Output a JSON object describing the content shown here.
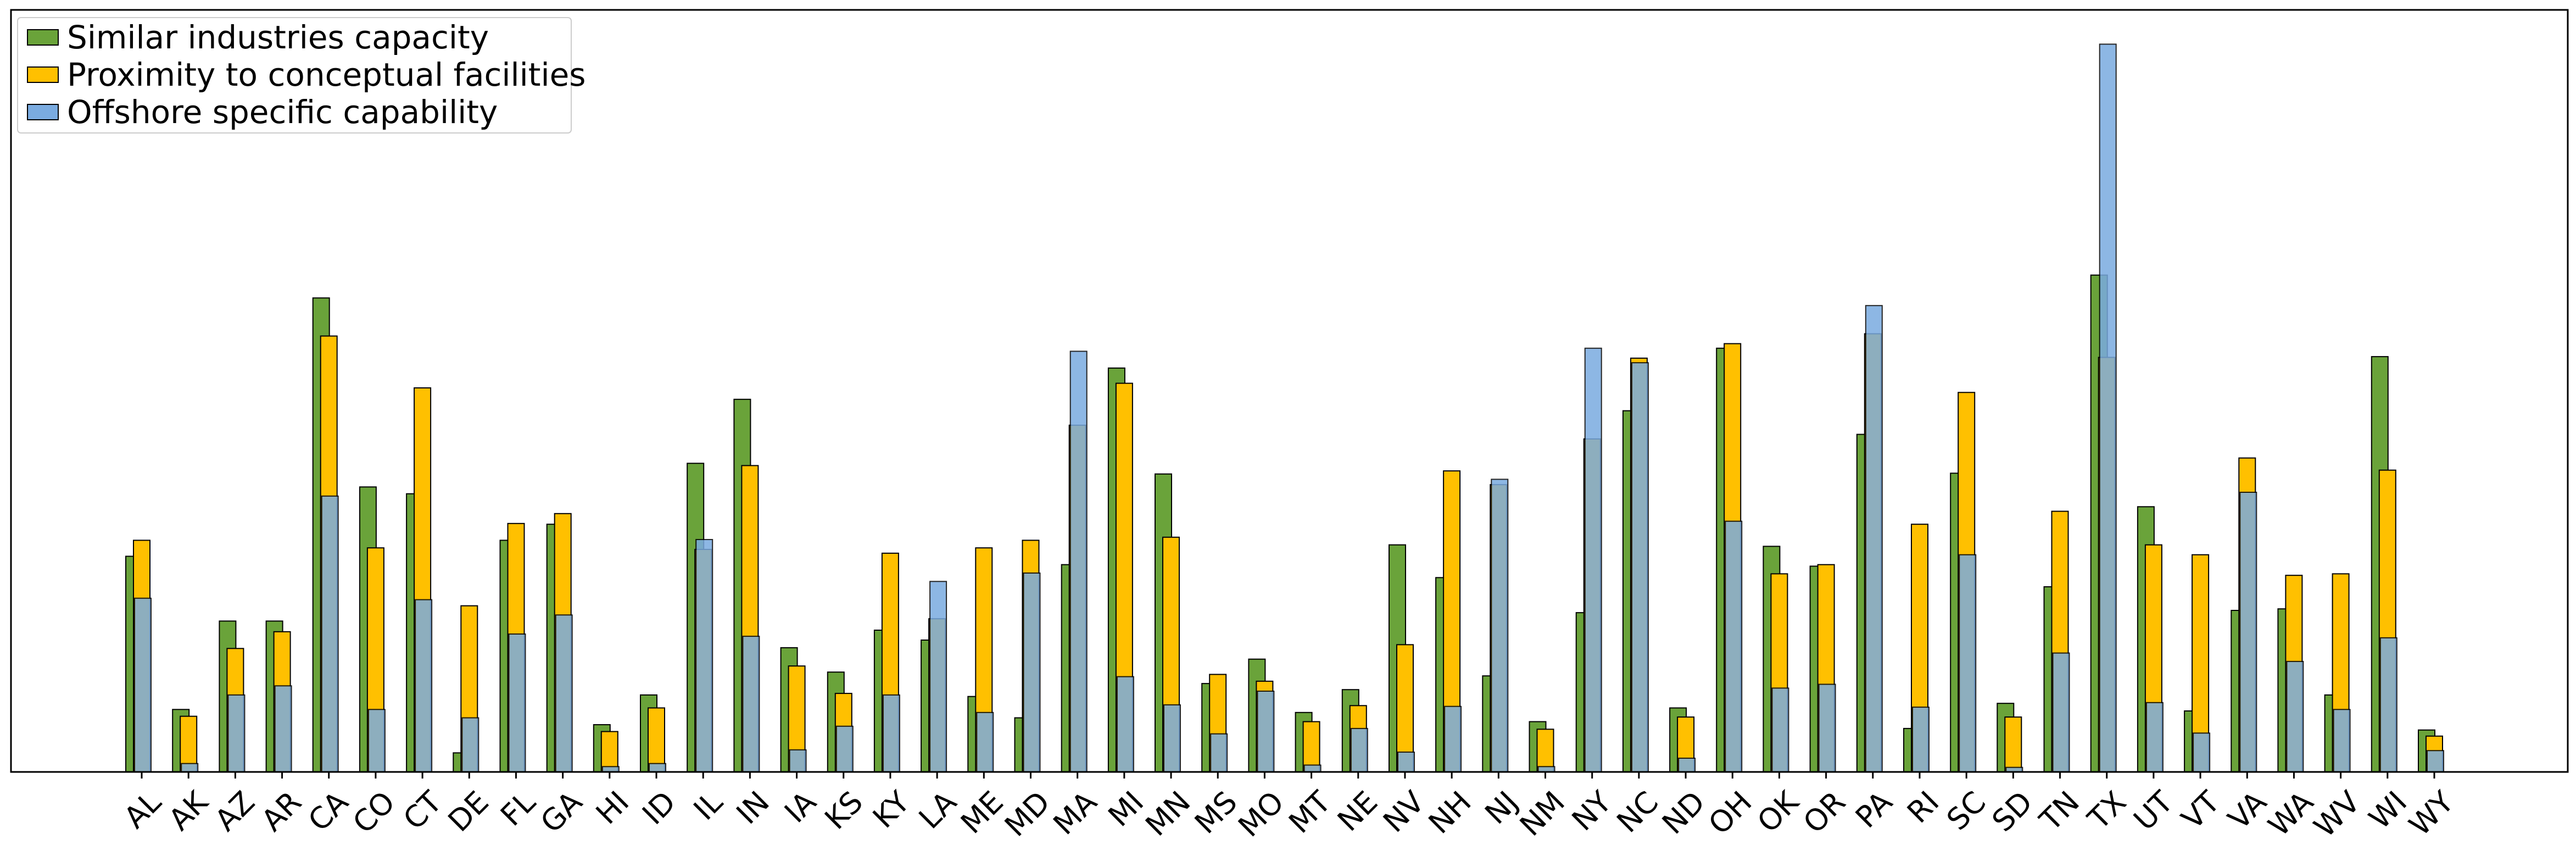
{
  "chart_data": {
    "type": "bar",
    "title": "",
    "xlabel": "",
    "ylabel": "",
    "y_axis_ticks_visible": false,
    "grid": false,
    "legend_placement": "top-left",
    "ylim": [
      0,
      1.0
    ],
    "categories": [
      "AL",
      "AK",
      "AZ",
      "AR",
      "CA",
      "CO",
      "CT",
      "DE",
      "FL",
      "GA",
      "HI",
      "ID",
      "IL",
      "IN",
      "IA",
      "KS",
      "KY",
      "LA",
      "ME",
      "MD",
      "MA",
      "MI",
      "MN",
      "MS",
      "MO",
      "MT",
      "NE",
      "NV",
      "NH",
      "NJ",
      "NM",
      "NY",
      "NC",
      "ND",
      "OH",
      "OK",
      "OR",
      "PA",
      "RI",
      "SC",
      "SD",
      "TN",
      "TX",
      "UT",
      "VT",
      "VA",
      "WA",
      "WV",
      "WI",
      "WY"
    ],
    "series": [
      {
        "name": "Similar industries capacity",
        "color": "#6aa33a",
        "values": [
          0.283,
          0.082,
          0.198,
          0.198,
          0.622,
          0.374,
          0.365,
          0.025,
          0.304,
          0.325,
          0.062,
          0.101,
          0.405,
          0.489,
          0.163,
          0.131,
          0.186,
          0.173,
          0.099,
          0.071,
          0.272,
          0.53,
          0.391,
          0.116,
          0.148,
          0.078,
          0.108,
          0.298,
          0.255,
          0.126,
          0.066,
          0.209,
          0.474,
          0.084,
          0.556,
          0.296,
          0.27,
          0.443,
          0.057,
          0.392,
          0.09,
          0.243,
          0.652,
          0.348,
          0.08,
          0.212,
          0.214,
          0.101,
          0.545,
          0.055
        ]
      },
      {
        "name": "Proximity to conceptual facilities",
        "color": "#ffc000",
        "values": [
          0.304,
          0.073,
          0.162,
          0.184,
          0.572,
          0.294,
          0.504,
          0.218,
          0.326,
          0.339,
          0.053,
          0.084,
          0.292,
          0.402,
          0.139,
          0.103,
          0.287,
          0.201,
          0.294,
          0.304,
          0.455,
          0.51,
          0.308,
          0.128,
          0.119,
          0.066,
          0.087,
          0.167,
          0.395,
          0.377,
          0.056,
          0.437,
          0.543,
          0.072,
          0.562,
          0.26,
          0.272,
          0.575,
          0.325,
          0.498,
          0.072,
          0.342,
          0.544,
          0.298,
          0.285,
          0.412,
          0.258,
          0.26,
          0.396,
          0.047
        ]
      },
      {
        "name": "Offshore specific capability",
        "color": "#7aabe0",
        "values": [
          0.228,
          0.011,
          0.101,
          0.113,
          0.362,
          0.082,
          0.226,
          0.071,
          0.181,
          0.206,
          0.007,
          0.011,
          0.305,
          0.178,
          0.029,
          0.06,
          0.101,
          0.25,
          0.078,
          0.261,
          0.552,
          0.125,
          0.088,
          0.05,
          0.106,
          0.009,
          0.057,
          0.026,
          0.086,
          0.384,
          0.007,
          0.556,
          0.537,
          0.018,
          0.329,
          0.11,
          0.115,
          0.612,
          0.085,
          0.285,
          0.006,
          0.156,
          0.955,
          0.091,
          0.051,
          0.367,
          0.145,
          0.082,
          0.176,
          0.028
        ]
      }
    ]
  }
}
